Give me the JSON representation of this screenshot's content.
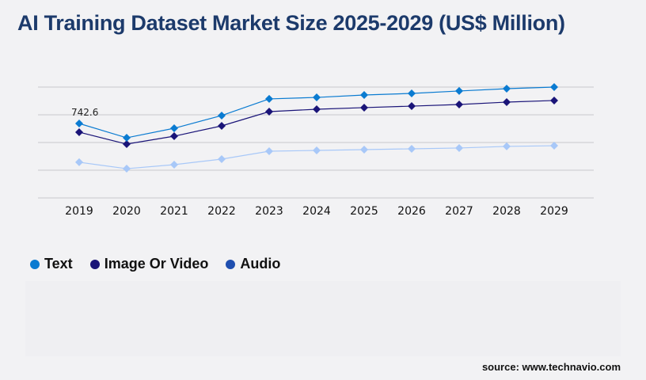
{
  "title": "AI Training Dataset Market Size 2025-2029 (US$ Million)",
  "source": "source: www.technavio.com",
  "chart_data": {
    "type": "line",
    "title": "AI Training Dataset Market Size 2025-2029 (US$ Million)",
    "categories": [
      "2019",
      "2020",
      "2021",
      "2022",
      "2023",
      "2024",
      "2025",
      "2026",
      "2027",
      "2028",
      "2029"
    ],
    "ylim": [
      0,
      1106
    ],
    "grid": true,
    "legend_position": "bottom-left",
    "series": [
      {
        "name": "Text",
        "color": "#0a7bd1",
        "line_color": "#0a7bd1",
        "values": [
          742.6,
          600,
          695,
          822,
          988,
          1003,
          1027,
          1043,
          1067,
          1090,
          1106
        ]
      },
      {
        "name": "Image Or Video",
        "color": "#1a1478",
        "line_color": "#1a1478",
        "values": [
          656,
          537,
          616,
          719,
          861,
          885,
          901,
          916,
          932,
          956,
          972
        ]
      },
      {
        "name": "Audio",
        "color": "#1f4fb0",
        "line_color": "#a8c8f8",
        "values": [
          356,
          292,
          332,
          387,
          466,
          474,
          482,
          490,
          498,
          514,
          521
        ]
      }
    ],
    "annotations": [
      {
        "series": "Text",
        "x": "2019",
        "label": "742.6"
      }
    ]
  }
}
